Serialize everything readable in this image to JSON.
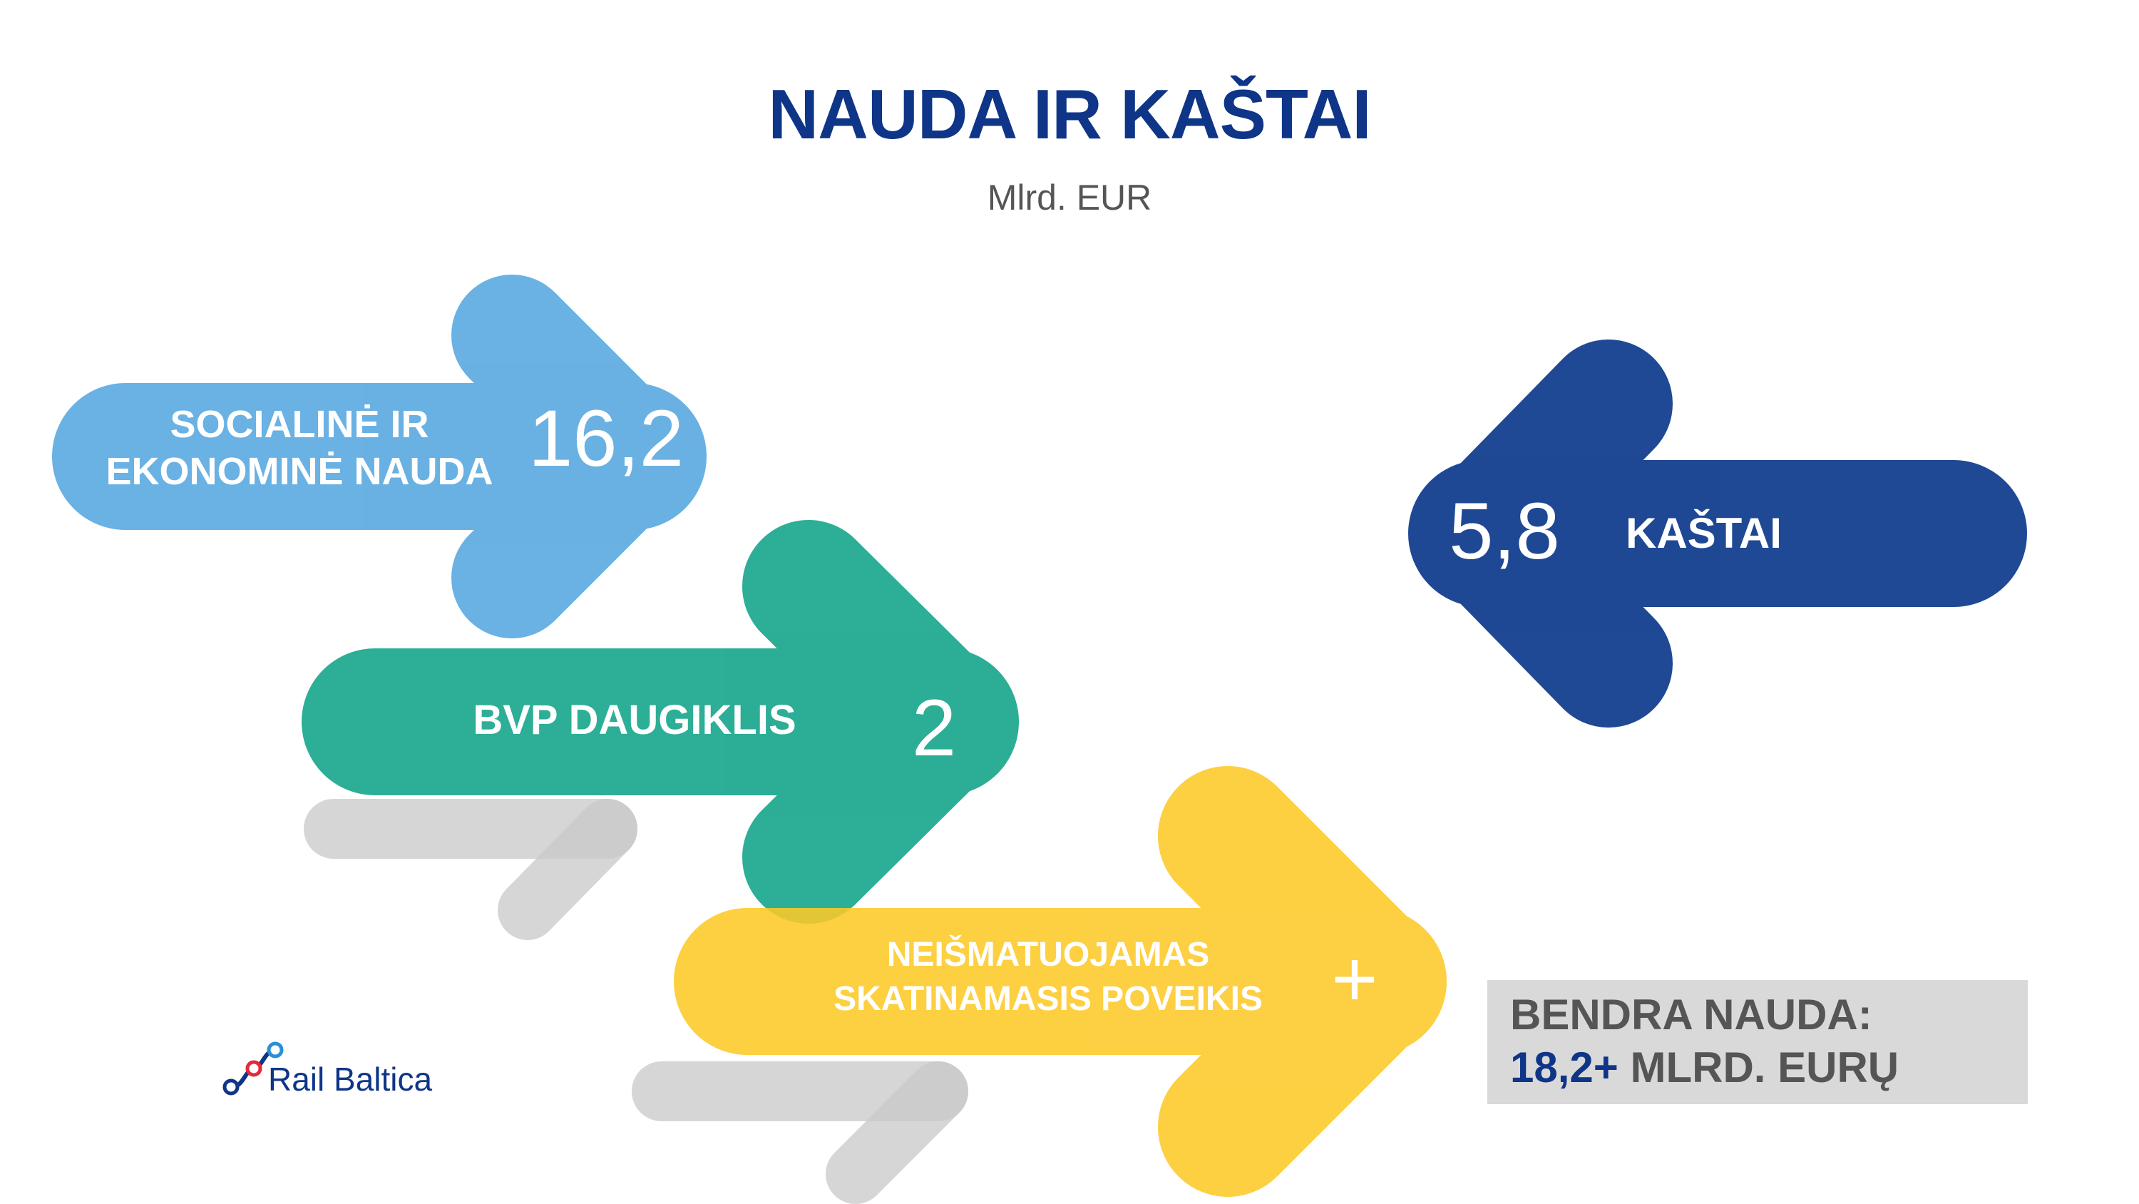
{
  "title": "NAUDA IR KAŠTAI",
  "subtitle": "Mlrd. EUR",
  "arrows": {
    "social": {
      "label_line1": "SOCIALINĖ IR",
      "label_line2": "EKONOMINĖ NAUDA",
      "value": "16,2",
      "color": "#5aa9e1"
    },
    "gdp": {
      "label": "BVP DAUGIKLIS",
      "value": "2",
      "color": "#16a58b"
    },
    "effect": {
      "label_line1": "NEIŠMATUOJAMAS",
      "label_line2": "SKATINAMASIS POVEIKIS",
      "value": "+",
      "color": "#fdc928"
    },
    "cost": {
      "label": "KAŠTAI",
      "value": "5,8",
      "color": "#143f8f"
    }
  },
  "total": {
    "line1": "BENDRA NAUDA:",
    "amount": "18,2+",
    "unit": "MLRD. EURŲ"
  },
  "logo": {
    "text": "Rail Baltica"
  }
}
